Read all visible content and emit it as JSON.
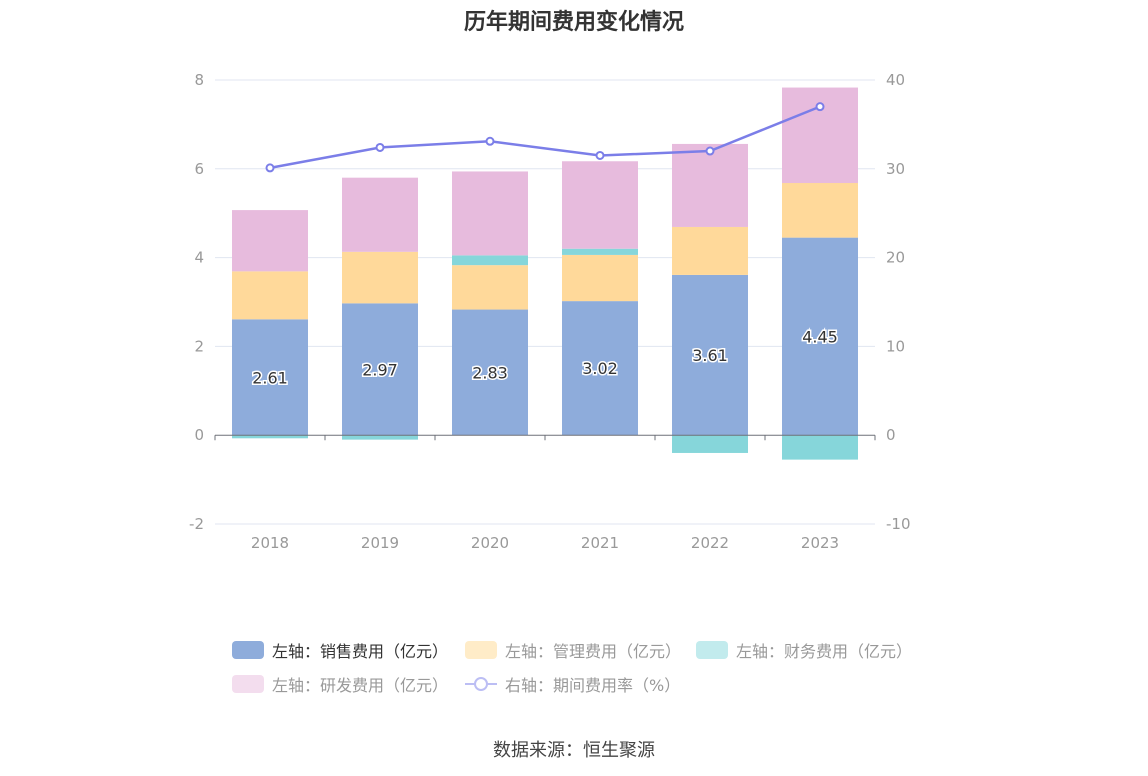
{
  "title": "历年期间费用变化情况",
  "source": "数据来源：恒生聚源",
  "colors": {
    "sales": "#8eacdb",
    "admin": "#ffd99a",
    "finance": "#86d6da",
    "rnd": "#e7bbdd",
    "rate": "#7b7ee8",
    "grid": "#e0e6f1",
    "axis_text": "#999999"
  },
  "legend": [
    {
      "key": "sales",
      "label": "左轴：销售费用（亿元）",
      "active": true
    },
    {
      "key": "admin",
      "label": "左轴：管理费用（亿元）",
      "active": false
    },
    {
      "key": "finance",
      "label": "左轴：财务费用（亿元）",
      "active": false
    },
    {
      "key": "rnd",
      "label": "左轴：研发费用（亿元）",
      "active": false
    },
    {
      "key": "rate",
      "label": "右轴：期间费用率（%）",
      "active": false
    }
  ],
  "chart_data": {
    "type": "bar",
    "stacked": true,
    "title": "历年期间费用变化情况",
    "categories": [
      "2018",
      "2019",
      "2020",
      "2021",
      "2022",
      "2023"
    ],
    "y_left": {
      "min": -2,
      "max": 8,
      "ticks": [
        "-2",
        "0",
        "2",
        "4",
        "6",
        "8"
      ]
    },
    "y_right": {
      "min": -10,
      "max": 40,
      "ticks": [
        "-10",
        "0",
        "10",
        "20",
        "30",
        "40"
      ]
    },
    "grid": true,
    "legend_position": "bottom",
    "series": [
      {
        "key": "sales",
        "name": "左轴：销售费用（亿元）",
        "axis": "left",
        "type": "bar",
        "values": [
          2.61,
          2.97,
          2.83,
          3.02,
          3.61,
          4.45
        ],
        "labels": [
          "2.61",
          "2.97",
          "2.83",
          "3.02",
          "3.61",
          "4.45"
        ]
      },
      {
        "key": "admin",
        "name": "左轴：管理费用（亿元）",
        "axis": "left",
        "type": "bar",
        "values": [
          1.08,
          1.16,
          1.0,
          1.04,
          1.08,
          1.23
        ]
      },
      {
        "key": "finance",
        "name": "左轴：财务费用（亿元）",
        "axis": "left",
        "type": "bar",
        "values": [
          -0.07,
          -0.1,
          0.22,
          0.14,
          -0.4,
          -0.55
        ]
      },
      {
        "key": "rnd",
        "name": "左轴：研发费用（亿元）",
        "axis": "left",
        "type": "bar",
        "values": [
          1.38,
          1.67,
          1.89,
          1.97,
          1.87,
          2.15
        ]
      },
      {
        "key": "rate",
        "name": "右轴：期间费用率（%）",
        "axis": "right",
        "type": "line",
        "values": [
          30.1,
          32.4,
          33.1,
          31.5,
          32.0,
          37.0
        ]
      }
    ]
  }
}
